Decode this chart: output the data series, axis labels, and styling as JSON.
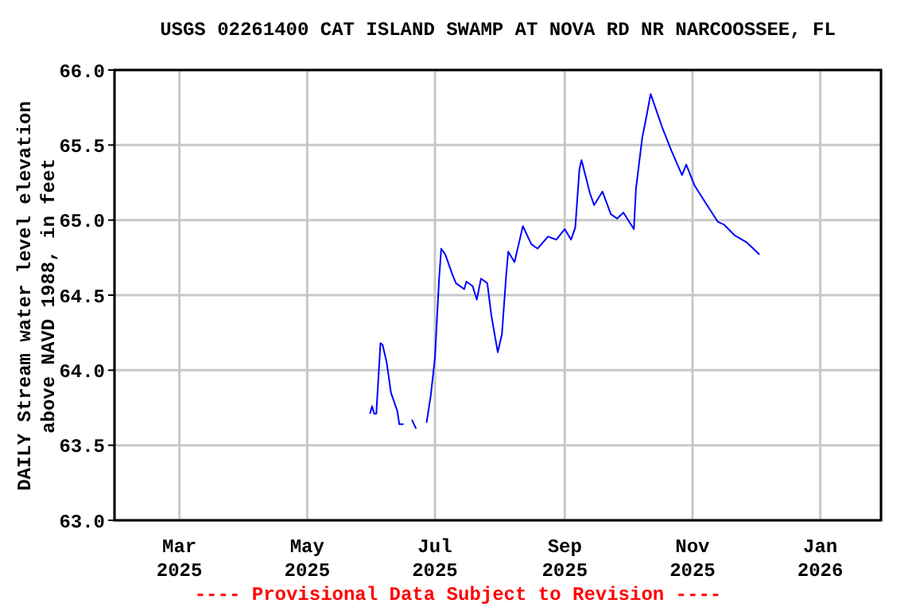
{
  "chart_data": {
    "type": "line",
    "title": "USGS 02261400 CAT ISLAND SWAMP AT NOVA RD NR NARCOOSSEE, FL",
    "ylabel": "DAILY Stream water level elevation\nabove NAVD 1988, in feet",
    "x": [
      "2025-05-31",
      "2025-06-01",
      "2025-06-02",
      "2025-06-03",
      "2025-06-05",
      "2025-06-06",
      "2025-06-08",
      "2025-06-10",
      "2025-06-13",
      "2025-06-14",
      "2025-06-16",
      "2025-06-18",
      "2025-06-20",
      "2025-06-22",
      "2025-06-24",
      "2025-06-27",
      "2025-06-29",
      "2025-07-01",
      "2025-07-03",
      "2025-07-04",
      "2025-07-06",
      "2025-07-09",
      "2025-07-11",
      "2025-07-15",
      "2025-07-16",
      "2025-07-19",
      "2025-07-21",
      "2025-07-23",
      "2025-07-26",
      "2025-07-28",
      "2025-07-31",
      "2025-08-02",
      "2025-08-04",
      "2025-08-05",
      "2025-08-08",
      "2025-08-10",
      "2025-08-12",
      "2025-08-16",
      "2025-08-19",
      "2025-08-24",
      "2025-08-28",
      "2025-09-01",
      "2025-09-04",
      "2025-09-06",
      "2025-09-08",
      "2025-09-09",
      "2025-09-13",
      "2025-09-15",
      "2025-09-19",
      "2025-09-23",
      "2025-09-26",
      "2025-09-29",
      "2025-10-04",
      "2025-10-05",
      "2025-10-08",
      "2025-10-10",
      "2025-10-12",
      "2025-10-15",
      "2025-10-18",
      "2025-10-22",
      "2025-10-27",
      "2025-10-29",
      "2025-11-02",
      "2025-11-07",
      "2025-11-13",
      "2025-11-16",
      "2025-11-21",
      "2025-11-27",
      "2025-12-03"
    ],
    "series": [
      {
        "color": "#0000ff",
        "values": [
          63.71,
          63.76,
          63.71,
          63.71,
          64.18,
          64.17,
          64.05,
          63.85,
          63.73,
          63.64,
          63.64,
          null,
          63.67,
          63.61,
          null,
          63.65,
          63.83,
          64.08,
          64.61,
          64.81,
          64.77,
          64.65,
          64.58,
          64.54,
          64.59,
          64.56,
          64.47,
          64.61,
          64.58,
          64.36,
          64.12,
          64.24,
          64.63,
          64.79,
          64.72,
          64.84,
          64.96,
          64.84,
          64.81,
          64.89,
          64.87,
          64.94,
          64.87,
          64.95,
          65.34,
          65.4,
          65.18,
          65.1,
          65.19,
          65.04,
          65.01,
          65.05,
          64.94,
          65.21,
          65.55,
          65.69,
          65.84,
          65.72,
          65.6,
          65.46,
          65.3,
          65.37,
          65.23,
          65.12,
          64.99,
          64.97,
          64.9,
          64.85,
          64.77
        ]
      }
    ],
    "xlim": [
      "2025-01-29",
      "2026-01-30"
    ],
    "xticks": [
      {
        "value": "2025-03-01",
        "label": "Mar\n2025"
      },
      {
        "value": "2025-05-01",
        "label": "May\n2025"
      },
      {
        "value": "2025-07-01",
        "label": "Jul\n2025"
      },
      {
        "value": "2025-09-01",
        "label": "Sep\n2025"
      },
      {
        "value": "2025-11-01",
        "label": "Nov\n2025"
      },
      {
        "value": "2026-01-01",
        "label": "Jan\n2026"
      }
    ],
    "ylim": [
      63,
      66
    ],
    "yticks": [
      {
        "value": 63,
        "label": "63.0"
      },
      {
        "value": 63.5,
        "label": "63.5"
      },
      {
        "value": 64,
        "label": "64.0"
      },
      {
        "value": 64.5,
        "label": "64.5"
      },
      {
        "value": 65,
        "label": "65.0"
      },
      {
        "value": 65.5,
        "label": "65.5"
      },
      {
        "value": 66,
        "label": "66.0"
      }
    ],
    "grid": true,
    "legend": false,
    "marker": "none",
    "line_style": "solid",
    "annotations": [
      "---- Provisional Data Subject to Revision ----"
    ]
  }
}
